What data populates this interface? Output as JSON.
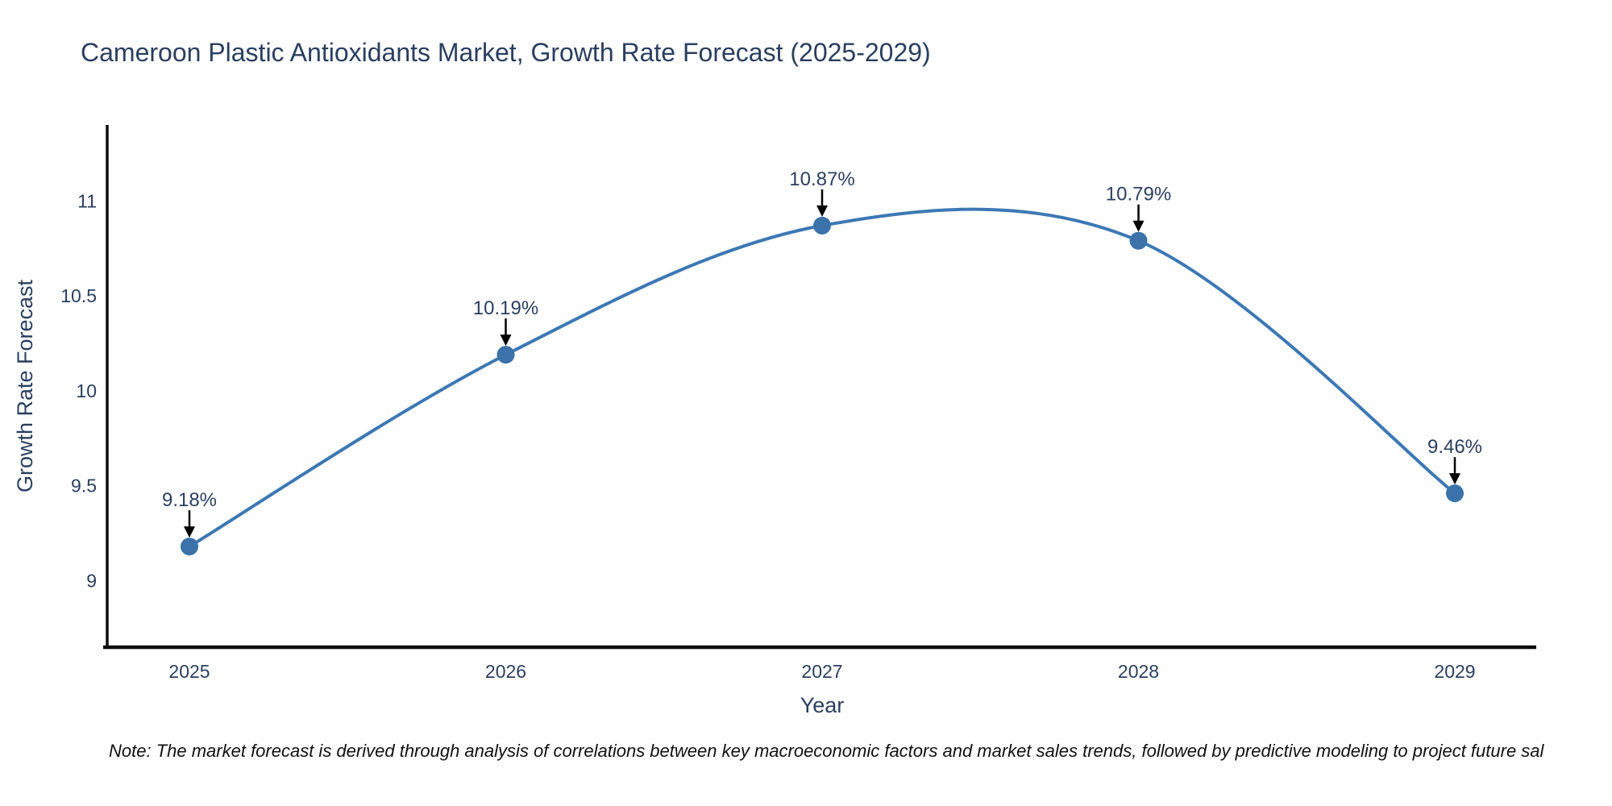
{
  "title": "Cameroon Plastic Antioxidants Market, Growth Rate Forecast (2025-2029)",
  "note": "Note: The market forecast is derived through analysis of correlations between key macroeconomic factors and market sales trends, followed by predictive modeling to project future sal",
  "chart_data": {
    "type": "line",
    "line_shape": "spline",
    "title": "Cameroon Plastic Antioxidants Market, Growth Rate Forecast (2025-2029)",
    "xlabel": "Year",
    "ylabel": "Growth Rate Forecast",
    "categories": [
      "2025",
      "2026",
      "2027",
      "2028",
      "2029"
    ],
    "series": [
      {
        "name": "Growth Rate Forecast",
        "values": [
          9.18,
          10.19,
          10.87,
          10.79,
          9.46
        ]
      }
    ],
    "point_labels": [
      "9.18%",
      "10.19%",
      "10.87%",
      "10.79%",
      "9.46%"
    ],
    "ytick_values": [
      9,
      9.5,
      10,
      10.5,
      11
    ],
    "ytick_labels": [
      "9",
      "9.5",
      "10",
      "10.5",
      "11"
    ],
    "ylim": [
      8.65,
      11.4
    ],
    "grid": false,
    "legend": "none",
    "line_color": "#3d78b4",
    "marker_color": "#3a72a9",
    "axis_color": "#0d0d0d",
    "annotation_arrow_color": "#000000",
    "text_color": "#2a3f5f"
  }
}
